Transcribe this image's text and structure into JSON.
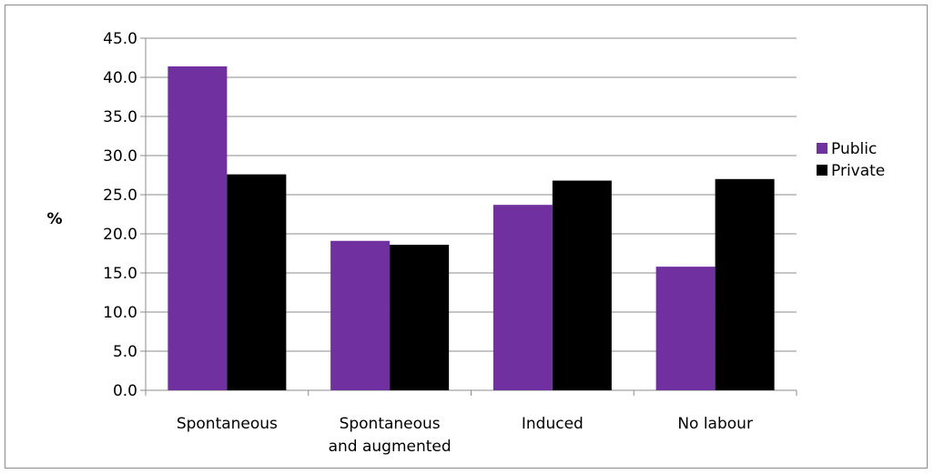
{
  "chart_data": {
    "type": "bar",
    "title": "",
    "xlabel": "",
    "ylabel": "%",
    "ylim": [
      0,
      45
    ],
    "ytick_step": 5,
    "ytick_format_decimals": 1,
    "grid": true,
    "legend_position": "right",
    "categories": [
      [
        "Spontaneous"
      ],
      [
        "Spontaneous",
        "and augmented"
      ],
      [
        "Induced"
      ],
      [
        "No labour"
      ]
    ],
    "series": [
      {
        "name": "Public",
        "color": "#7030a0",
        "values": [
          41.4,
          19.1,
          23.7,
          15.8
        ]
      },
      {
        "name": "Private",
        "color": "#000000",
        "values": [
          27.6,
          18.6,
          26.8,
          27.0
        ]
      }
    ]
  }
}
